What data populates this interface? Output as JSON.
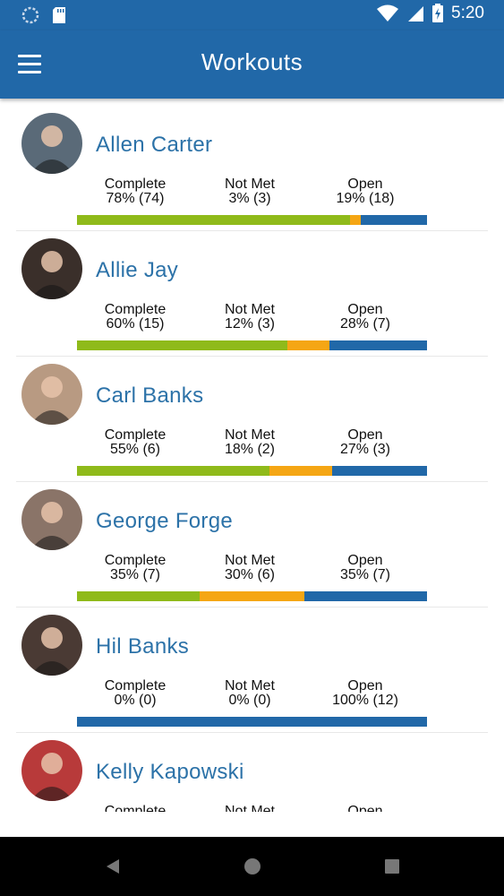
{
  "status_bar": {
    "time": "5:20"
  },
  "app_bar": {
    "title": "Workouts"
  },
  "colors": {
    "complete": "#8fba1a",
    "not_met": "#f5a614",
    "open": "#2168a8",
    "header": "#2168a8",
    "name_text": "#2c72a8"
  },
  "labels": {
    "complete": "Complete",
    "not_met": "Not Met",
    "open": "Open"
  },
  "athletes": [
    {
      "name": "Allen Carter",
      "complete": "78% (74)",
      "not_met": "3% (3)",
      "open": "19% (18)",
      "fractions": [
        0.78,
        0.03,
        0.19
      ],
      "avatar_bg": "#5a6a78"
    },
    {
      "name": "Allie Jay",
      "complete": "60% (15)",
      "not_met": "12% (3)",
      "open": "28% (7)",
      "fractions": [
        0.6,
        0.12,
        0.28
      ],
      "avatar_bg": "#3a2f2a"
    },
    {
      "name": "Carl Banks",
      "complete": "55% (6)",
      "not_met": "18% (2)",
      "open": "27% (3)",
      "fractions": [
        0.55,
        0.18,
        0.27
      ],
      "avatar_bg": "#b89a82"
    },
    {
      "name": "George Forge",
      "complete": "35% (7)",
      "not_met": "30% (6)",
      "open": "35% (7)",
      "fractions": [
        0.35,
        0.3,
        0.35
      ],
      "avatar_bg": "#8a7468"
    },
    {
      "name": "Hil Banks",
      "complete": "0% (0)",
      "not_met": "0% (0)",
      "open": "100% (12)",
      "fractions": [
        0,
        0,
        1
      ],
      "avatar_bg": "#4a3a34"
    },
    {
      "name": "Kelly Kapowski",
      "complete": "",
      "not_met": "",
      "open": "",
      "fractions": [
        0,
        0,
        0
      ],
      "avatar_bg": "#b83a3a"
    }
  ]
}
